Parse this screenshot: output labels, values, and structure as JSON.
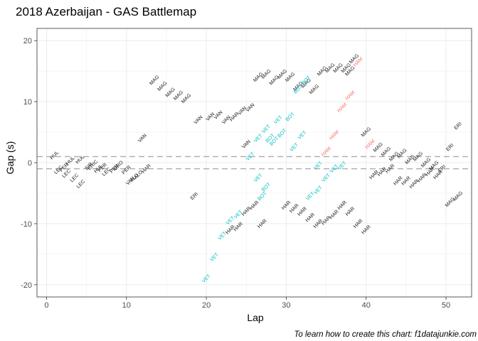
{
  "chart_data": {
    "type": "scatter",
    "title": "2018 Azerbaijan - GAS Battlemap",
    "xlabel": "Lap",
    "ylabel": "Gap (s)",
    "caption": "To learn how to create this chart: f1datajunkie.com",
    "xlim": [
      -1.2,
      53.2
    ],
    "ylim": [
      -22,
      22
    ],
    "x_ticks": [
      0,
      10,
      20,
      30,
      40,
      50
    ],
    "y_ticks": [
      -20,
      -10,
      0,
      10,
      20
    ],
    "grid": true,
    "legend": "none",
    "reference_lines": [
      1,
      -1
    ],
    "colors": {
      "default": "#1a1a1a",
      "VET": "#00bfc4",
      "BOT": "#00bfc4",
      "HAM": "#f8766d",
      "highlight_teal": "#00bfc4",
      "gridline": "#ebebeb",
      "refline": "#aaaaaa"
    },
    "points": [
      {
        "lap": 1,
        "gap": 1.2,
        "label": "HUL"
      },
      {
        "lap": 1.5,
        "gap": -1.2,
        "label": "LEC"
      },
      {
        "lap": 2.2,
        "gap": -0.8,
        "label": "PER"
      },
      {
        "lap": 2.5,
        "gap": -1.8,
        "label": "LEC"
      },
      {
        "lap": 3.0,
        "gap": 0.3,
        "label": "HUL"
      },
      {
        "lap": 3.5,
        "gap": -2.5,
        "label": "LEC"
      },
      {
        "lap": 4.2,
        "gap": 0.5,
        "label": "HUL"
      },
      {
        "lap": 4.3,
        "gap": -3.5,
        "label": "LEC"
      },
      {
        "lap": 5.3,
        "gap": -0.6,
        "label": "SIR"
      },
      {
        "lap": 5.8,
        "gap": -0.4,
        "label": "ERIC"
      },
      {
        "lap": 6.5,
        "gap": -1.0,
        "label": "HUL"
      },
      {
        "lap": 7.0,
        "gap": -0.8,
        "label": "PER"
      },
      {
        "lap": 7.5,
        "gap": -1.5,
        "label": "LEC"
      },
      {
        "lap": 8.5,
        "gap": -1.0,
        "label": "PER"
      },
      {
        "lap": 9.0,
        "gap": -0.5,
        "label": "ORO"
      },
      {
        "lap": 10.0,
        "gap": -1.2,
        "label": "PER"
      },
      {
        "lap": 10.5,
        "gap": -3.0,
        "label": "VAN"
      },
      {
        "lap": 11.0,
        "gap": -2.5,
        "label": "ALO"
      },
      {
        "lap": 11.5,
        "gap": -2.0,
        "label": "ALO"
      },
      {
        "lap": 12.5,
        "gap": -1.0,
        "label": "HAR"
      },
      {
        "lap": 12.0,
        "gap": 4.0,
        "label": "VAN"
      },
      {
        "lap": 13.5,
        "gap": 13.5,
        "label": "MAG"
      },
      {
        "lap": 14.5,
        "gap": 12.5,
        "label": "MAG"
      },
      {
        "lap": 15.5,
        "gap": 11.5,
        "label": "MAG"
      },
      {
        "lap": 16.5,
        "gap": 11.0,
        "label": "MAG"
      },
      {
        "lap": 17.5,
        "gap": 10.5,
        "label": "MAG"
      },
      {
        "lap": 19.0,
        "gap": 7.0,
        "label": "VAN"
      },
      {
        "lap": 20.5,
        "gap": 7.5,
        "label": "VAN"
      },
      {
        "lap": 21.5,
        "gap": 7.8,
        "label": "VAN"
      },
      {
        "lap": 22.5,
        "gap": 7.0,
        "label": "VAN"
      },
      {
        "lap": 23.5,
        "gap": 7.5,
        "label": "HAR"
      },
      {
        "lap": 24.5,
        "gap": 8.5,
        "label": "VAN"
      },
      {
        "lap": 25.5,
        "gap": 9.0,
        "label": "VAN"
      },
      {
        "lap": 18.5,
        "gap": -5.5,
        "label": "ERI"
      },
      {
        "lap": 20.0,
        "gap": -19.0,
        "label": "VET"
      },
      {
        "lap": 21.0,
        "gap": -15.5,
        "label": "VET"
      },
      {
        "lap": 22.0,
        "gap": -12.0,
        "label": "VET"
      },
      {
        "lap": 23.0,
        "gap": -9.5,
        "label": "VET"
      },
      {
        "lap": 24.0,
        "gap": -8.5,
        "label": "VET"
      },
      {
        "lap": 23.0,
        "gap": -11.0,
        "label": "HAR"
      },
      {
        "lap": 24.0,
        "gap": -10.5,
        "label": "HAR"
      },
      {
        "lap": 25.0,
        "gap": -8.0,
        "label": "HAR"
      },
      {
        "lap": 26.0,
        "gap": -7.0,
        "label": "HAR"
      },
      {
        "lap": 27.0,
        "gap": -10.0,
        "label": "HAR"
      },
      {
        "lap": 25.0,
        "gap": 3.0,
        "label": "VAN"
      },
      {
        "lap": 25.5,
        "gap": 1.0,
        "label": "VET"
      },
      {
        "lap": 26.5,
        "gap": -2.5,
        "label": "VET"
      },
      {
        "lap": 27.0,
        "gap": -5.5,
        "label": "BOT"
      },
      {
        "lap": 27.5,
        "gap": -4.0,
        "label": "BOT"
      },
      {
        "lap": 26.5,
        "gap": 4.0,
        "label": "VET"
      },
      {
        "lap": 27.5,
        "gap": 5.5,
        "label": "VET"
      },
      {
        "lap": 29.0,
        "gap": 7.0,
        "label": "VET"
      },
      {
        "lap": 28.0,
        "gap": 4.0,
        "label": "BOT"
      },
      {
        "lap": 29.5,
        "gap": 4.8,
        "label": "BOT"
      },
      {
        "lap": 30.5,
        "gap": 7.5,
        "label": "BOT"
      },
      {
        "lap": 26.5,
        "gap": 14.0,
        "label": "MAG"
      },
      {
        "lap": 27.5,
        "gap": 14.5,
        "label": "MAG"
      },
      {
        "lap": 28.5,
        "gap": 13.5,
        "label": "MAG"
      },
      {
        "lap": 29.5,
        "gap": 14.5,
        "label": "MAG"
      },
      {
        "lap": 30.5,
        "gap": 14.0,
        "label": "MAG"
      },
      {
        "lap": 31.5,
        "gap": 12.5,
        "label": "MAG"
      },
      {
        "lap": 32.5,
        "gap": 13.0,
        "label": "MAG"
      },
      {
        "lap": 33.5,
        "gap": 12.0,
        "label": "MAG"
      },
      {
        "lap": 31.5,
        "gap": 12.0,
        "label": "BOT"
      },
      {
        "lap": 32.5,
        "gap": 13.5,
        "label": "BOT"
      },
      {
        "lap": 34.5,
        "gap": 15.0,
        "label": "MAG"
      },
      {
        "lap": 35.5,
        "gap": 15.5,
        "label": "MAG"
      },
      {
        "lap": 36.5,
        "gap": 15.5,
        "label": "MAG"
      },
      {
        "lap": 37.5,
        "gap": 15.5,
        "label": "MAG"
      },
      {
        "lap": 38.5,
        "gap": 17.0,
        "label": "MAG"
      },
      {
        "lap": 38.0,
        "gap": 15.0,
        "label": "MAG"
      },
      {
        "lap": 39.0,
        "gap": 16.5,
        "label": "HAM"
      },
      {
        "lap": 28.5,
        "gap": 3.5,
        "label": "BOT"
      },
      {
        "lap": 31.0,
        "gap": 2.5,
        "label": "VET"
      },
      {
        "lap": 32.0,
        "gap": 4.5,
        "label": "VET"
      },
      {
        "lap": 33.0,
        "gap": -5.5,
        "label": "VET"
      },
      {
        "lap": 34.0,
        "gap": -4.5,
        "label": "VET"
      },
      {
        "lap": 35.0,
        "gap": -2.5,
        "label": "VET"
      },
      {
        "lap": 34.0,
        "gap": -0.5,
        "label": "VET"
      },
      {
        "lap": 36.0,
        "gap": -1.0,
        "label": "VET"
      },
      {
        "lap": 37.0,
        "gap": -0.5,
        "label": "VET"
      },
      {
        "lap": 35.0,
        "gap": 1.8,
        "label": "HAM"
      },
      {
        "lap": 36.0,
        "gap": 4.5,
        "label": "HAM"
      },
      {
        "lap": 37.0,
        "gap": 9.0,
        "label": "HAM"
      },
      {
        "lap": 38.0,
        "gap": 11.0,
        "label": "HAM"
      },
      {
        "lap": 30.0,
        "gap": -7.0,
        "label": "HAR"
      },
      {
        "lap": 31.0,
        "gap": -7.5,
        "label": "HAR"
      },
      {
        "lap": 32.0,
        "gap": -8.0,
        "label": "HAR"
      },
      {
        "lap": 33.0,
        "gap": -9.0,
        "label": "HAR"
      },
      {
        "lap": 34.0,
        "gap": -10.0,
        "label": "HAR"
      },
      {
        "lap": 35.0,
        "gap": -9.5,
        "label": "HAR"
      },
      {
        "lap": 36.0,
        "gap": -8.5,
        "label": "HAR"
      },
      {
        "lap": 37.0,
        "gap": -7.0,
        "label": "HAR"
      },
      {
        "lap": 38.0,
        "gap": -8.0,
        "label": "HAR"
      },
      {
        "lap": 39.0,
        "gap": -10.0,
        "label": "HAR"
      },
      {
        "lap": 40.0,
        "gap": -11.0,
        "label": "HAR"
      },
      {
        "lap": 40.0,
        "gap": 5.0,
        "label": "MAG"
      },
      {
        "lap": 40.5,
        "gap": 3.0,
        "label": "HAM"
      },
      {
        "lap": 41.5,
        "gap": 2.5,
        "label": "MAG"
      },
      {
        "lap": 42.5,
        "gap": 1.8,
        "label": "MAG"
      },
      {
        "lap": 43.5,
        "gap": 1.0,
        "label": "MAG"
      },
      {
        "lap": 44.5,
        "gap": 1.5,
        "label": "MAG"
      },
      {
        "lap": 45.5,
        "gap": 0.5,
        "label": "MAG"
      },
      {
        "lap": 46.5,
        "gap": 1.0,
        "label": "MAG"
      },
      {
        "lap": 47.5,
        "gap": 0.0,
        "label": "MAG"
      },
      {
        "lap": 41.0,
        "gap": -2.0,
        "label": "HAR"
      },
      {
        "lap": 42.0,
        "gap": -1.5,
        "label": "HAR"
      },
      {
        "lap": 43.0,
        "gap": -1.0,
        "label": "HAR"
      },
      {
        "lap": 44.0,
        "gap": -3.0,
        "label": "HAR"
      },
      {
        "lap": 45.0,
        "gap": -3.0,
        "label": "HAR"
      },
      {
        "lap": 46.0,
        "gap": -3.5,
        "label": "HAR"
      },
      {
        "lap": 47.0,
        "gap": -2.5,
        "label": "HAR"
      },
      {
        "lap": 48.0,
        "gap": -1.5,
        "label": "HAR"
      },
      {
        "lap": 49.0,
        "gap": -2.0,
        "label": "HAR"
      },
      {
        "lap": 48.5,
        "gap": -0.5,
        "label": "MAG"
      },
      {
        "lap": 49.5,
        "gap": -1.0,
        "label": "ERI"
      },
      {
        "lap": 50.5,
        "gap": 2.5,
        "label": "ERI"
      },
      {
        "lap": 51.5,
        "gap": 6.0,
        "label": "ERI"
      },
      {
        "lap": 50.5,
        "gap": -6.5,
        "label": "MAG"
      },
      {
        "lap": 51.5,
        "gap": -5.5,
        "label": "MAG"
      }
    ]
  }
}
